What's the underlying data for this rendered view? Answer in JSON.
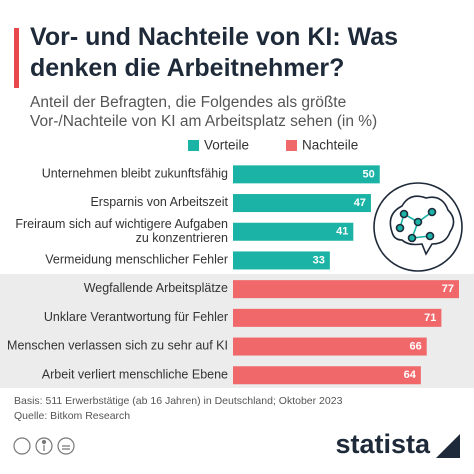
{
  "chart_data": {
    "type": "bar",
    "title": "Vor- und Nachteile von KI: Was\ndenken die Arbeitnehmer?",
    "subtitle": "Anteil der Befragten, die Folgendes als größte\nVor-/Nachteile von KI am Arbeitsplatz sehen (in %)",
    "categories": [
      "Unternehmen bleibt zukunftsfähig",
      "Ersparnis von Arbeitszeit",
      "Freiraum sich auf wichtigere Aufgaben\nzu konzentrieren",
      "Vermeidung menschlicher Fehler",
      "Wegfallende Arbeitsplätze",
      "Unklare Verantwortung für Fehler",
      "Menschen verlassen sich zu sehr auf KI",
      "Arbeit verliert menschliche Ebene"
    ],
    "series": [
      {
        "name": "Vorteile",
        "color": "#1ab3a6",
        "values": [
          50,
          47,
          41,
          33,
          null,
          null,
          null,
          null
        ]
      },
      {
        "name": "Nachteile",
        "color": "#f0686a",
        "values": [
          null,
          null,
          null,
          null,
          77,
          71,
          66,
          64
        ]
      }
    ],
    "note": "Basis: 511 Erwerbstätige (ab 16 Jahren) in Deutschland; Oktober 2023",
    "source": "Quelle: Bitkom Research",
    "brand": "statista"
  }
}
